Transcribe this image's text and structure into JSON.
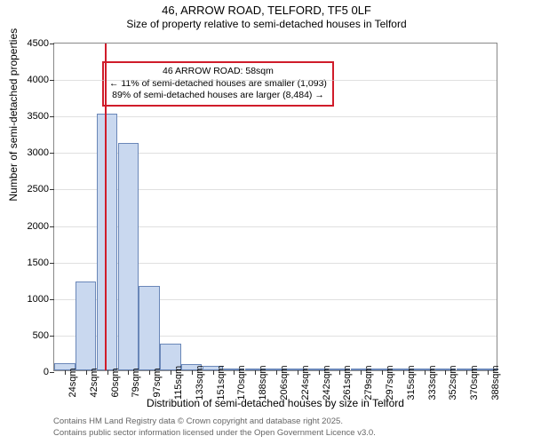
{
  "title": {
    "line1": "46, ARROW ROAD, TELFORD, TF5 0LF",
    "line2": "Size of property relative to semi-detached houses in Telford"
  },
  "chart": {
    "type": "bar",
    "ylabel": "Number of semi-detached properties",
    "xlabel": "Distribution of semi-detached houses by size in Telford",
    "ylim": [
      0,
      4500
    ],
    "ytick_step": 500,
    "yticks": [
      0,
      500,
      1000,
      1500,
      2000,
      2500,
      3000,
      3500,
      4000,
      4500
    ],
    "x_categories": [
      "24sqm",
      "42sqm",
      "60sqm",
      "79sqm",
      "97sqm",
      "115sqm",
      "133sqm",
      "151sqm",
      "170sqm",
      "188sqm",
      "206sqm",
      "224sqm",
      "242sqm",
      "261sqm",
      "279sqm",
      "297sqm",
      "315sqm",
      "333sqm",
      "352sqm",
      "370sqm",
      "388sqm"
    ],
    "values": [
      95,
      1220,
      3510,
      3110,
      1150,
      360,
      90,
      55,
      22,
      14,
      8,
      5,
      3,
      2,
      1,
      1,
      0,
      0,
      0,
      0,
      0
    ],
    "bar_color": "#c9d8ef",
    "bar_border": "#6a87b8",
    "background_color": "#ffffff",
    "grid_color": "#cccccc",
    "plot_border": "#888888",
    "reference_line": {
      "position_sqm": 58,
      "color": "#d01c2a"
    }
  },
  "annotation": {
    "line1": "46 ARROW ROAD: 58sqm",
    "line2": "← 11% of semi-detached houses are smaller (1,093)",
    "line3": "89% of semi-detached houses are larger (8,484) →",
    "border_color": "#d01c2a"
  },
  "attribution": {
    "line1": "Contains HM Land Registry data © Crown copyright and database right 2025.",
    "line2": "Contains public sector information licensed under the Open Government Licence v3.0."
  }
}
